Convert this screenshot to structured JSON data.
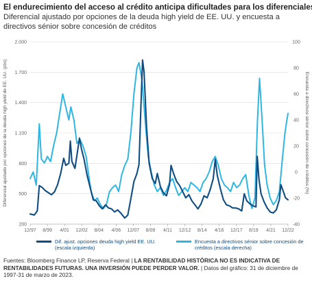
{
  "header": {
    "title": "El endurecimiento del acceso al crédito anticipa dificultades para los diferenciales",
    "subtitle": "Diferencial ajustado por opciones de la deuda high yield de EE. UU. y encuesta a directivos sénior sobre concesión de créditos"
  },
  "footer": {
    "sources": "Fuentes: Bloomberg Finance LP, Reserva Federal",
    "disclaimer": "LA RENTABILIDAD HISTÓRICA NO ES INDICATIVA DE RENTABILIDADES FUTURAS. UNA INVERSIÓN PUEDE PERDER VALOR.",
    "dates": "Datos del gráfico: 31 de diciembre de 1997-31 de marzo de 2023."
  },
  "colors": {
    "dark_series": "#0f4c81",
    "light_series": "#2eb6e3",
    "grid": "#d9d9d9",
    "text": "#666666"
  },
  "chart_data": {
    "type": "line",
    "xlabel": "",
    "x_tick_labels": [
      "12/97",
      "8/99",
      "4/01",
      "12/02",
      "8/04",
      "4/06",
      "12/07",
      "8/09",
      "4/11",
      "12/12",
      "8/14",
      "4/16",
      "12/17",
      "8/19",
      "4/21",
      "12/22"
    ],
    "x_range_years": [
      1997.9,
      2023.25
    ],
    "y_left": {
      "label": "Diferencial ajustado por opciones de la deuda high yield de EE. UU. (pbs)",
      "lim": [
        200,
        2000
      ],
      "ticks": [
        "200",
        "500",
        "800",
        "1.100",
        "1.400",
        "1.700",
        "2.000"
      ]
    },
    "y_right": {
      "label": "Encuesta a directivos sénior sobre concesión de créditos (%)",
      "lim": [
        -40,
        100
      ],
      "ticks": [
        "-40",
        "-20",
        "0",
        "20",
        "40",
        "60",
        "80",
        "100"
      ]
    },
    "grid": true,
    "legend_position": "bottom",
    "series": [
      {
        "name": "Dif. ajust. opciones deuda high yield EE. UU. (escala izquierda)",
        "axis": "left",
        "color": "#0f4c81",
        "points": [
          [
            1997.9,
            300
          ],
          [
            1998.3,
            290
          ],
          [
            1998.6,
            330
          ],
          [
            1998.8,
            580
          ],
          [
            1999.1,
            560
          ],
          [
            1999.4,
            530
          ],
          [
            1999.7,
            510
          ],
          [
            2000.0,
            490
          ],
          [
            2000.3,
            520
          ],
          [
            2000.6,
            590
          ],
          [
            2000.9,
            700
          ],
          [
            2001.2,
            850
          ],
          [
            2001.4,
            780
          ],
          [
            2001.7,
            800
          ],
          [
            2001.85,
            1020
          ],
          [
            2002.0,
            820
          ],
          [
            2002.3,
            750
          ],
          [
            2002.5,
            880
          ],
          [
            2002.75,
            1050
          ],
          [
            2002.95,
            940
          ],
          [
            2003.2,
            840
          ],
          [
            2003.5,
            680
          ],
          [
            2003.8,
            560
          ],
          [
            2004.1,
            440
          ],
          [
            2004.4,
            430
          ],
          [
            2004.7,
            380
          ],
          [
            2005.0,
            350
          ],
          [
            2005.3,
            390
          ],
          [
            2005.6,
            360
          ],
          [
            2005.9,
            350
          ],
          [
            2006.2,
            320
          ],
          [
            2006.5,
            340
          ],
          [
            2006.8,
            310
          ],
          [
            2007.2,
            260
          ],
          [
            2007.5,
            290
          ],
          [
            2007.8,
            450
          ],
          [
            2008.1,
            620
          ],
          [
            2008.4,
            700
          ],
          [
            2008.6,
            790
          ],
          [
            2008.8,
            1400
          ],
          [
            2008.95,
            1820
          ],
          [
            2009.1,
            1700
          ],
          [
            2009.35,
            1150
          ],
          [
            2009.6,
            800
          ],
          [
            2009.9,
            650
          ],
          [
            2010.2,
            600
          ],
          [
            2010.4,
            700
          ],
          [
            2010.7,
            570
          ],
          [
            2011.0,
            510
          ],
          [
            2011.3,
            480
          ],
          [
            2011.6,
            590
          ],
          [
            2011.75,
            780
          ],
          [
            2012.0,
            700
          ],
          [
            2012.3,
            620
          ],
          [
            2012.6,
            580
          ],
          [
            2012.9,
            520
          ],
          [
            2013.2,
            460
          ],
          [
            2013.5,
            490
          ],
          [
            2013.8,
            430
          ],
          [
            2014.1,
            390
          ],
          [
            2014.4,
            350
          ],
          [
            2014.7,
            400
          ],
          [
            2015.0,
            480
          ],
          [
            2015.3,
            460
          ],
          [
            2015.6,
            540
          ],
          [
            2015.9,
            650
          ],
          [
            2016.1,
            840
          ],
          [
            2016.3,
            680
          ],
          [
            2016.6,
            550
          ],
          [
            2016.9,
            440
          ],
          [
            2017.2,
            390
          ],
          [
            2017.5,
            380
          ],
          [
            2017.8,
            360
          ],
          [
            2018.1,
            360
          ],
          [
            2018.4,
            350
          ],
          [
            2018.7,
            330
          ],
          [
            2018.95,
            500
          ],
          [
            2019.2,
            430
          ],
          [
            2019.5,
            400
          ],
          [
            2019.8,
            380
          ],
          [
            2020.1,
            370
          ],
          [
            2020.22,
            870
          ],
          [
            2020.4,
            640
          ],
          [
            2020.6,
            500
          ],
          [
            2020.9,
            420
          ],
          [
            2021.2,
            360
          ],
          [
            2021.5,
            320
          ],
          [
            2021.8,
            310
          ],
          [
            2022.1,
            340
          ],
          [
            2022.4,
            440
          ],
          [
            2022.55,
            590
          ],
          [
            2022.8,
            520
          ],
          [
            2023.0,
            460
          ],
          [
            2023.25,
            440
          ]
        ]
      },
      {
        "name": "Encuesta a directivos sénior sobre concesión de créditos (escala derecha)",
        "axis": "right",
        "color": "#2eb6e3",
        "points": [
          [
            1997.9,
            -5
          ],
          [
            1998.2,
            0
          ],
          [
            1998.5,
            -10
          ],
          [
            1998.8,
            37
          ],
          [
            1999.0,
            10
          ],
          [
            1999.3,
            7
          ],
          [
            1999.6,
            12
          ],
          [
            1999.9,
            8
          ],
          [
            2000.2,
            20
          ],
          [
            2000.5,
            30
          ],
          [
            2000.8,
            45
          ],
          [
            2001.1,
            60
          ],
          [
            2001.4,
            50
          ],
          [
            2001.7,
            40
          ],
          [
            2001.9,
            50
          ],
          [
            2002.2,
            40
          ],
          [
            2002.5,
            22
          ],
          [
            2002.8,
            25
          ],
          [
            2003.1,
            20
          ],
          [
            2003.4,
            12
          ],
          [
            2003.7,
            -5
          ],
          [
            2003.9,
            -15
          ],
          [
            2004.2,
            -22
          ],
          [
            2004.5,
            -20
          ],
          [
            2004.8,
            -25
          ],
          [
            2005.1,
            -28
          ],
          [
            2005.4,
            -25
          ],
          [
            2005.7,
            -15
          ],
          [
            2006.0,
            -12
          ],
          [
            2006.3,
            -10
          ],
          [
            2006.6,
            -15
          ],
          [
            2006.9,
            -2
          ],
          [
            2007.2,
            5
          ],
          [
            2007.5,
            10
          ],
          [
            2007.8,
            30
          ],
          [
            2008.1,
            60
          ],
          [
            2008.4,
            80
          ],
          [
            2008.6,
            84
          ],
          [
            2008.9,
            70
          ],
          [
            2009.2,
            40
          ],
          [
            2009.5,
            12
          ],
          [
            2009.8,
            0
          ],
          [
            2010.1,
            -10
          ],
          [
            2010.4,
            -15
          ],
          [
            2010.7,
            -12
          ],
          [
            2011.0,
            -18
          ],
          [
            2011.3,
            -14
          ],
          [
            2011.6,
            -8
          ],
          [
            2011.9,
            -5
          ],
          [
            2012.2,
            -12
          ],
          [
            2012.5,
            -18
          ],
          [
            2012.8,
            -15
          ],
          [
            2013.1,
            -12
          ],
          [
            2013.4,
            -15
          ],
          [
            2013.7,
            -8
          ],
          [
            2014.0,
            -10
          ],
          [
            2014.3,
            -12
          ],
          [
            2014.6,
            -15
          ],
          [
            2014.9,
            -8
          ],
          [
            2015.2,
            -5
          ],
          [
            2015.5,
            0
          ],
          [
            2015.8,
            8
          ],
          [
            2016.1,
            12
          ],
          [
            2016.4,
            5
          ],
          [
            2016.7,
            -5
          ],
          [
            2017.0,
            -10
          ],
          [
            2017.3,
            -12
          ],
          [
            2017.6,
            -15
          ],
          [
            2017.9,
            -8
          ],
          [
            2018.2,
            -12
          ],
          [
            2018.5,
            -10
          ],
          [
            2018.8,
            -5
          ],
          [
            2019.1,
            -2
          ],
          [
            2019.4,
            -18
          ],
          [
            2019.7,
            -28
          ],
          [
            2020.0,
            -20
          ],
          [
            2020.25,
            40
          ],
          [
            2020.45,
            72
          ],
          [
            2020.7,
            40
          ],
          [
            2020.95,
            5
          ],
          [
            2021.2,
            -10
          ],
          [
            2021.5,
            -20
          ],
          [
            2021.8,
            -25
          ],
          [
            2022.1,
            -22
          ],
          [
            2022.4,
            -15
          ],
          [
            2022.7,
            10
          ],
          [
            2022.95,
            30
          ],
          [
            2023.1,
            38
          ],
          [
            2023.25,
            45
          ]
        ]
      }
    ]
  }
}
